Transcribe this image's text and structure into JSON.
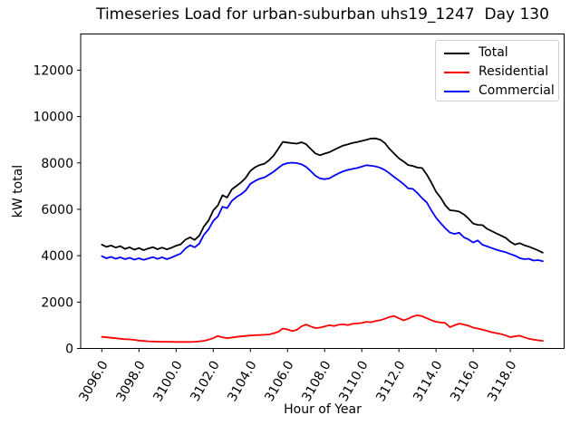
{
  "chart_data": {
    "type": "line",
    "title": "Timeseries Load for urban-suburban uhs19_1247  Day 130",
    "xlabel": "Hour of Year",
    "ylabel": "kW total",
    "xlim": [
      3094.86,
      3120.9
    ],
    "ylim": [
      0,
      13560
    ],
    "xticks": [
      3096,
      3098,
      3100,
      3102,
      3104,
      3106,
      3108,
      3110,
      3112,
      3114,
      3116,
      3118
    ],
    "xtick_labels": [
      "3096.0",
      "3098.0",
      "3100.0",
      "3102.0",
      "3104.0",
      "3106.0",
      "3108.0",
      "3110.0",
      "3112.0",
      "3114.0",
      "3116.0",
      "3118.0"
    ],
    "yticks": [
      0,
      2000,
      4000,
      6000,
      8000,
      10000,
      12000
    ],
    "ytick_labels": [
      "0",
      "2000",
      "4000",
      "6000",
      "8000",
      "10000",
      "12000"
    ],
    "grid": false,
    "legend_position": "upper right",
    "colors": {
      "total": "#000000",
      "residential": "#ff0000",
      "commercial": "#0000ff"
    },
    "x": [
      3096.0,
      3096.25,
      3096.5,
      3096.75,
      3097.0,
      3097.25,
      3097.5,
      3097.75,
      3098.0,
      3098.25,
      3098.5,
      3098.75,
      3099.0,
      3099.25,
      3099.5,
      3099.75,
      3100.0,
      3100.25,
      3100.5,
      3100.75,
      3101.0,
      3101.25,
      3101.5,
      3101.75,
      3102.0,
      3102.25,
      3102.5,
      3102.75,
      3103.0,
      3103.25,
      3103.5,
      3103.75,
      3104.0,
      3104.25,
      3104.5,
      3104.75,
      3105.0,
      3105.25,
      3105.5,
      3105.75,
      3106.0,
      3106.25,
      3106.5,
      3106.75,
      3107.0,
      3107.25,
      3107.5,
      3107.75,
      3108.0,
      3108.25,
      3108.5,
      3108.75,
      3109.0,
      3109.25,
      3109.5,
      3109.75,
      3110.0,
      3110.25,
      3110.5,
      3110.75,
      3111.0,
      3111.25,
      3111.5,
      3111.75,
      3112.0,
      3112.25,
      3112.5,
      3112.75,
      3113.0,
      3113.25,
      3113.5,
      3113.75,
      3114.0,
      3114.25,
      3114.5,
      3114.75,
      3115.0,
      3115.25,
      3115.5,
      3115.75,
      3116.0,
      3116.25,
      3116.5,
      3116.75,
      3117.0,
      3117.25,
      3117.5,
      3117.75,
      3118.0,
      3118.25,
      3118.5,
      3118.75,
      3119.0,
      3119.25,
      3119.5,
      3119.75
    ],
    "series": [
      {
        "name": "Total",
        "color": "#000000",
        "values": [
          4480,
          4380,
          4440,
          4350,
          4410,
          4290,
          4360,
          4260,
          4330,
          4240,
          4310,
          4370,
          4280,
          4350,
          4270,
          4340,
          4430,
          4490,
          4690,
          4790,
          4680,
          4860,
          5260,
          5520,
          5950,
          6170,
          6610,
          6510,
          6860,
          7010,
          7160,
          7360,
          7660,
          7810,
          7910,
          7960,
          8110,
          8310,
          8610,
          8910,
          8880,
          8850,
          8830,
          8890,
          8810,
          8610,
          8410,
          8330,
          8400,
          8460,
          8560,
          8660,
          8750,
          8800,
          8860,
          8900,
          8950,
          9000,
          9050,
          9060,
          9000,
          8850,
          8600,
          8400,
          8200,
          8060,
          7910,
          7870,
          7800,
          7780,
          7500,
          7150,
          6760,
          6500,
          6170,
          5960,
          5940,
          5900,
          5780,
          5600,
          5390,
          5330,
          5320,
          5160,
          5060,
          4960,
          4870,
          4770,
          4600,
          4480,
          4540,
          4450,
          4390,
          4310,
          4230,
          4130
        ]
      },
      {
        "name": "Residential",
        "color": "#ff0000",
        "values": [
          500,
          480,
          460,
          440,
          420,
          400,
          390,
          370,
          340,
          325,
          310,
          300,
          295,
          290,
          288,
          285,
          283,
          280,
          280,
          283,
          290,
          305,
          330,
          380,
          440,
          540,
          480,
          445,
          470,
          500,
          520,
          540,
          560,
          570,
          580,
          590,
          600,
          650,
          720,
          860,
          820,
          750,
          800,
          950,
          1030,
          950,
          880,
          900,
          950,
          1000,
          970,
          1020,
          1040,
          1010,
          1060,
          1080,
          1100,
          1150,
          1130,
          1180,
          1220,
          1280,
          1360,
          1400,
          1300,
          1210,
          1280,
          1380,
          1430,
          1390,
          1300,
          1220,
          1150,
          1120,
          1100,
          920,
          1000,
          1070,
          1030,
          980,
          900,
          860,
          810,
          760,
          700,
          660,
          620,
          560,
          490,
          520,
          550,
          480,
          420,
          380,
          350,
          330
        ]
      },
      {
        "name": "Commercial",
        "color": "#0000ff",
        "values": [
          3980,
          3890,
          3950,
          3870,
          3930,
          3850,
          3910,
          3830,
          3890,
          3820,
          3880,
          3940,
          3860,
          3930,
          3850,
          3920,
          4010,
          4090,
          4310,
          4450,
          4360,
          4520,
          4900,
          5140,
          5500,
          5690,
          6110,
          6050,
          6360,
          6530,
          6650,
          6810,
          7100,
          7220,
          7320,
          7370,
          7490,
          7620,
          7780,
          7930,
          7990,
          8010,
          7990,
          7940,
          7830,
          7650,
          7450,
          7330,
          7300,
          7330,
          7450,
          7550,
          7640,
          7700,
          7740,
          7780,
          7840,
          7900,
          7880,
          7850,
          7790,
          7690,
          7550,
          7390,
          7240,
          7090,
          6900,
          6880,
          6700,
          6480,
          6300,
          5950,
          5640,
          5400,
          5180,
          5000,
          4940,
          4990,
          4790,
          4700,
          4570,
          4660,
          4470,
          4400,
          4330,
          4260,
          4200,
          4150,
          4070,
          4000,
          3900,
          3850,
          3870,
          3790,
          3810,
          3760
        ]
      }
    ]
  }
}
